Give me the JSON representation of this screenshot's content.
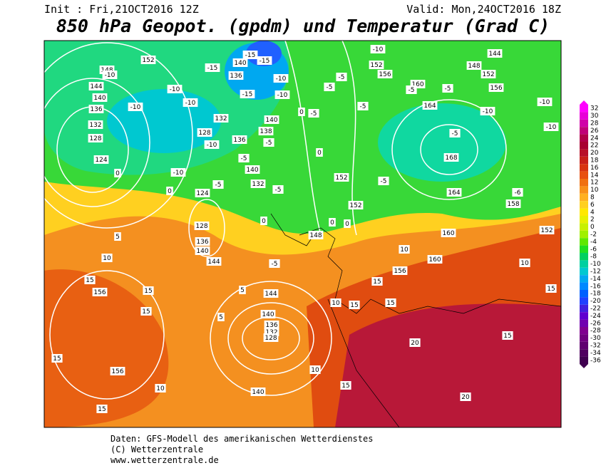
{
  "header": {
    "init": "Init : Fri,21OCT2016 12Z",
    "valid": "Valid: Mon,24OCT2016 18Z",
    "title": "850 hPa Geopot. (gpdm) und Temperatur (Grad C)"
  },
  "legend": {
    "levels": [
      {
        "value": 32,
        "color": "#ff00ff"
      },
      {
        "value": 30,
        "color": "#e800d8"
      },
      {
        "value": 28,
        "color": "#d000a8"
      },
      {
        "value": 26,
        "color": "#c00078"
      },
      {
        "value": 24,
        "color": "#b00048"
      },
      {
        "value": 22,
        "color": "#a80030"
      },
      {
        "value": 20,
        "color": "#b81028"
      },
      {
        "value": 18,
        "color": "#c82018"
      },
      {
        "value": 16,
        "color": "#d83410"
      },
      {
        "value": 14,
        "color": "#e85010"
      },
      {
        "value": 12,
        "color": "#f07010"
      },
      {
        "value": 10,
        "color": "#f89018"
      },
      {
        "value": 8,
        "color": "#ffb020"
      },
      {
        "value": 6,
        "color": "#ffd020"
      },
      {
        "value": 4,
        "color": "#ffe800"
      },
      {
        "value": 2,
        "color": "#e8f000"
      },
      {
        "value": 0,
        "color": "#c8f000"
      },
      {
        "value": -2,
        "color": "#a0f000"
      },
      {
        "value": -4,
        "color": "#60e800"
      },
      {
        "value": -6,
        "color": "#20e020"
      },
      {
        "value": -8,
        "color": "#00d060"
      },
      {
        "value": -10,
        "color": "#00d0a0"
      },
      {
        "value": -12,
        "color": "#00c8d0"
      },
      {
        "value": -14,
        "color": "#00a8f0"
      },
      {
        "value": -16,
        "color": "#0088ff"
      },
      {
        "value": -18,
        "color": "#0060ff"
      },
      {
        "value": -20,
        "color": "#2040ff"
      },
      {
        "value": -22,
        "color": "#4020e0"
      },
      {
        "value": -24,
        "color": "#6000d0"
      },
      {
        "value": -26,
        "color": "#7000b0"
      },
      {
        "value": -28,
        "color": "#800090"
      },
      {
        "value": -30,
        "color": "#700080"
      },
      {
        "value": -32,
        "color": "#600070"
      },
      {
        "value": -34,
        "color": "#500060"
      },
      {
        "value": -36,
        "color": "#400050"
      }
    ]
  },
  "contour_labels": [
    "152",
    "148",
    "144",
    "140",
    "136",
    "132",
    "128",
    "124",
    "-10",
    "-10",
    "-10",
    "-10",
    "0",
    "0",
    "124",
    "128",
    "136",
    "140",
    "144",
    "5",
    "10",
    "15",
    "156",
    "15",
    "15",
    "15",
    "156",
    "10",
    "15",
    "144",
    "140",
    "136",
    "132",
    "128",
    "140",
    "10",
    "15",
    "20",
    "20",
    "15",
    "15",
    "10",
    "152",
    "158",
    "-6",
    "164",
    "168",
    "-5",
    "-10",
    "-10",
    "-10",
    "164",
    "160",
    "156",
    "152",
    "148",
    "152",
    "144",
    "156",
    "-10",
    "152",
    "152",
    "148",
    "0",
    "0",
    "0",
    "-5",
    "5",
    "5",
    "160",
    "156",
    "160",
    "10",
    "15",
    "10",
    "15",
    "15",
    "140",
    "132",
    "-5",
    "-5",
    "-5",
    "0",
    "0",
    "-5",
    "-5",
    "-5",
    "-5",
    "-5",
    "-5",
    "-10",
    "-10",
    "-15",
    "-15",
    "-15",
    "136",
    "140",
    "132",
    "128",
    "136",
    "-10",
    "-15",
    "-10",
    "140",
    "138",
    "-5",
    "-5"
  ],
  "footer": {
    "line1": "Daten: GFS-Modell des amerikanischen Wetterdienstes",
    "line2": "(C) Wetterzentrale",
    "line3": "www.wetterzentrale.de"
  }
}
